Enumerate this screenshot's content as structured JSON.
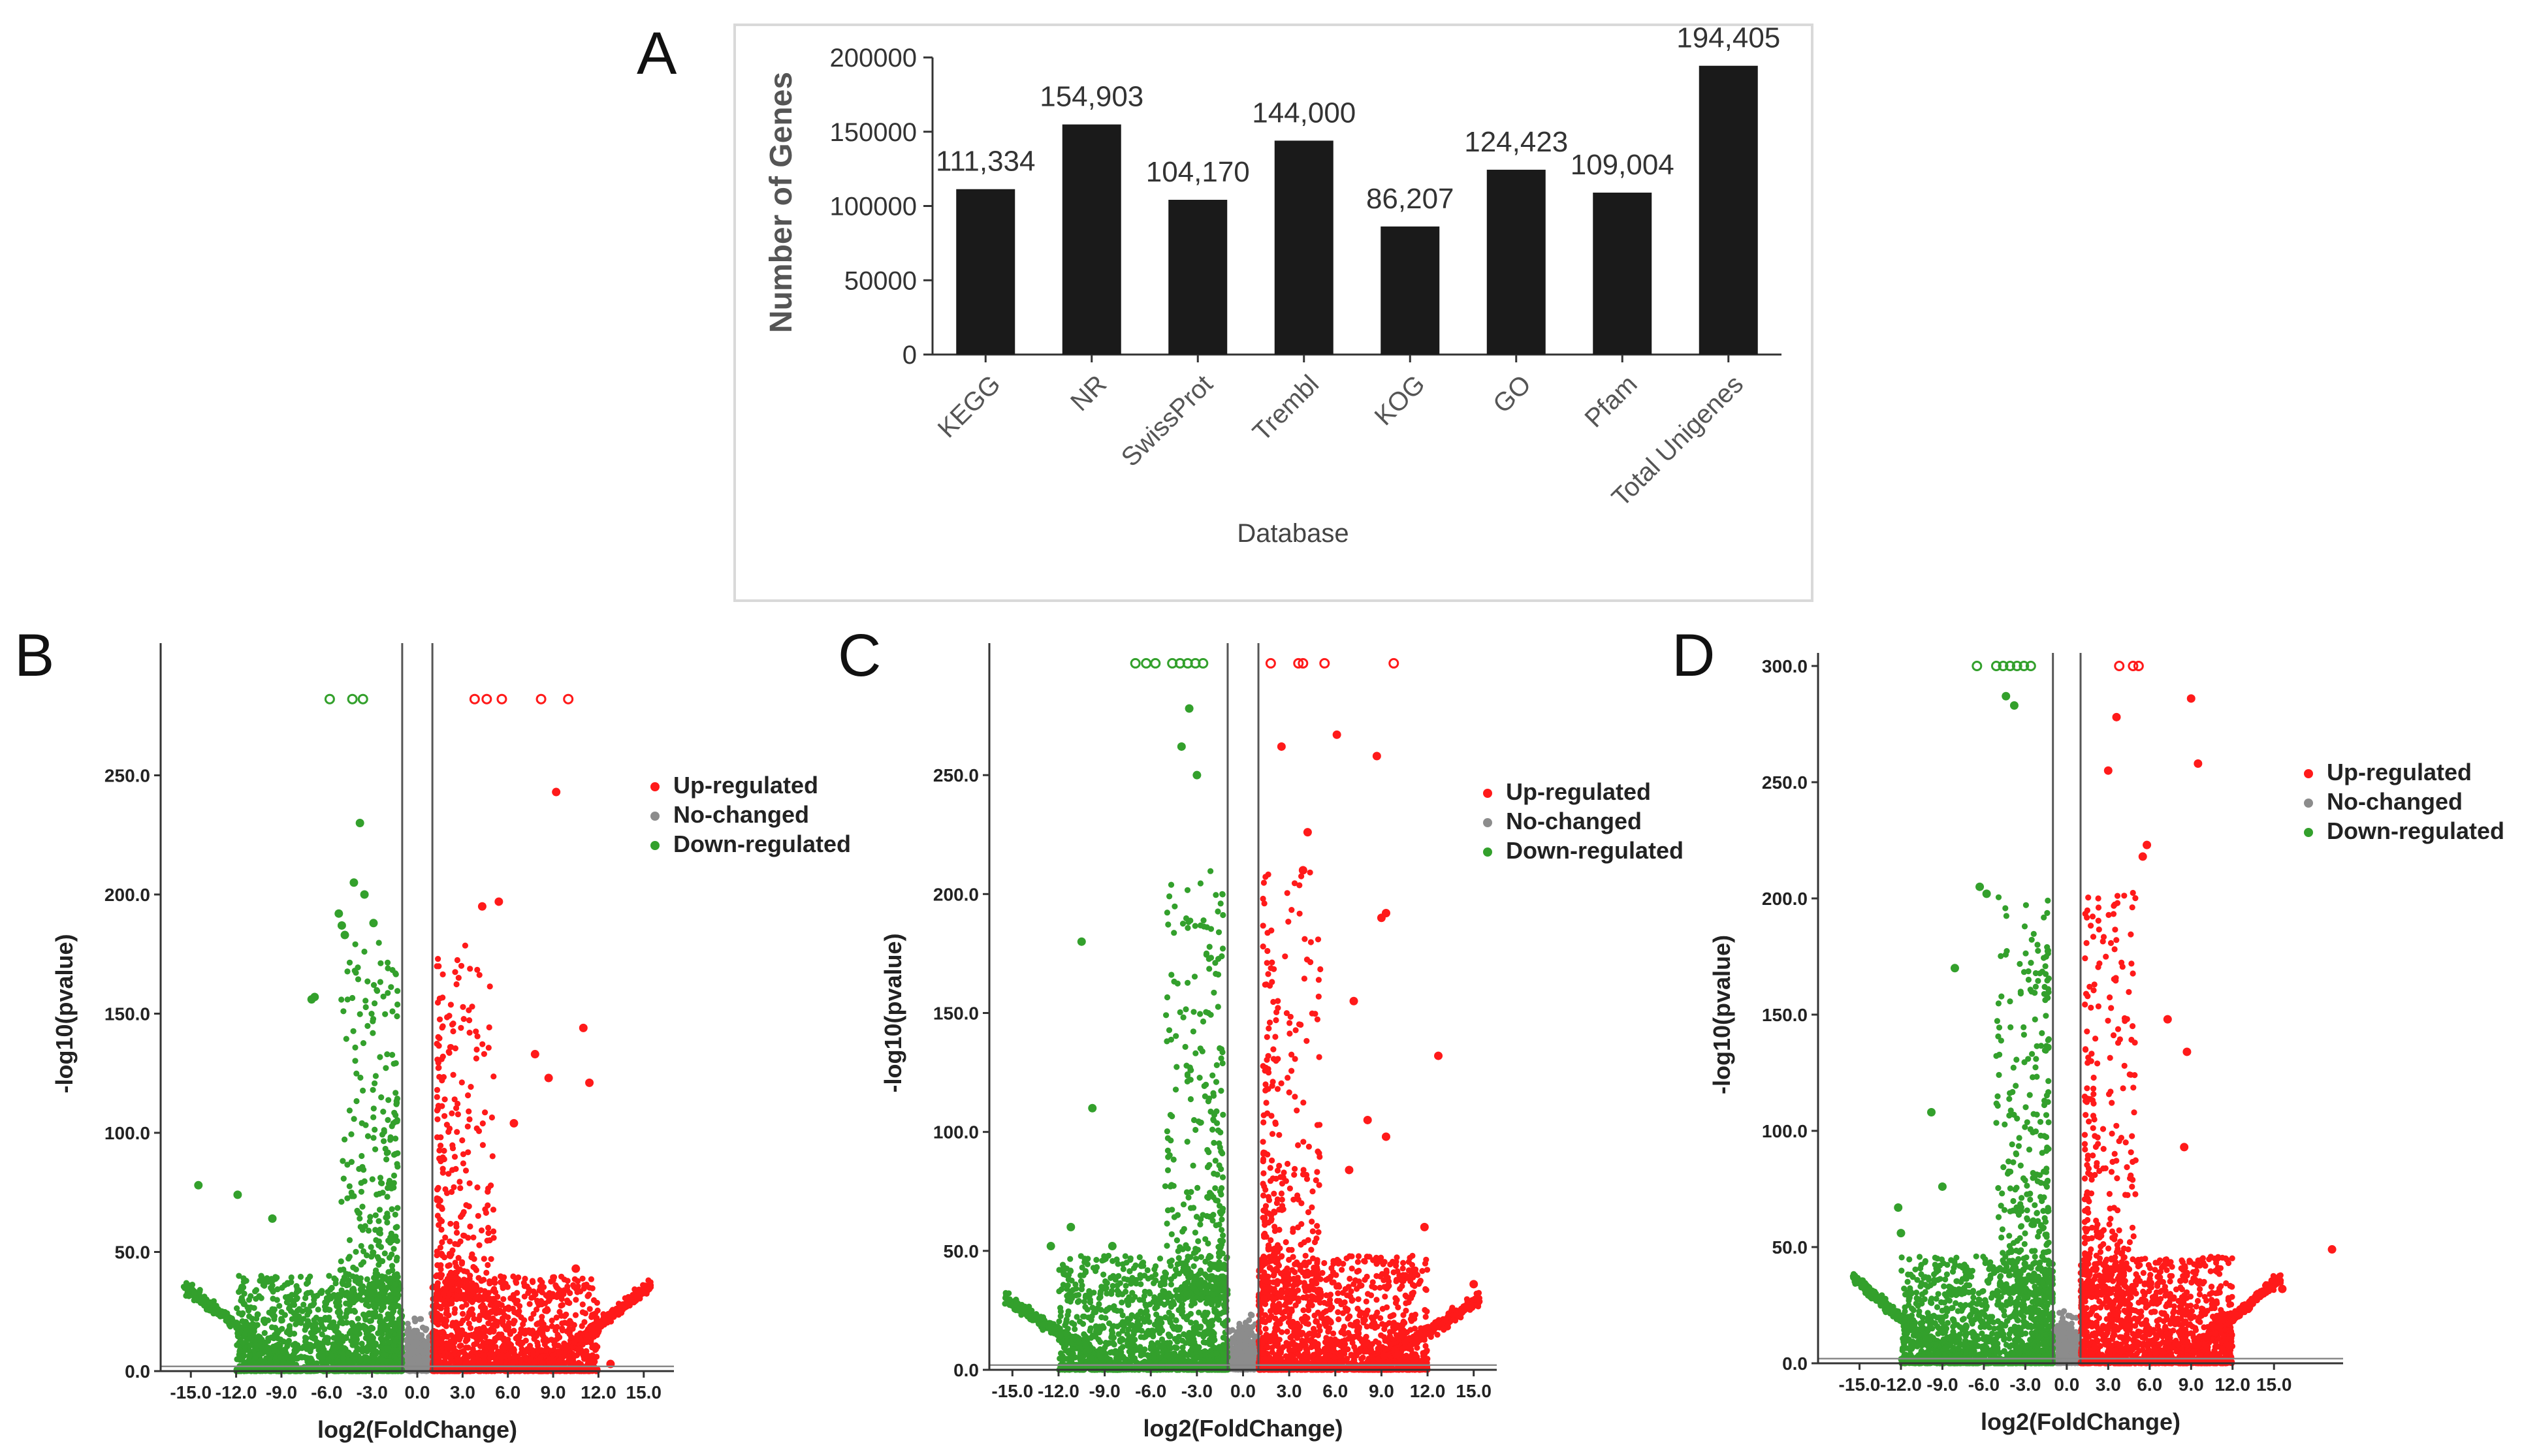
{
  "panel_labels": [
    "A",
    "B",
    "C",
    "D"
  ],
  "colors": {
    "bar": "#1a1a1a",
    "up": "#ff1a1a",
    "none": "#8c8c8c",
    "down": "#33a02c",
    "axis": "#333333",
    "frame": "#d9d9d9"
  },
  "chart_data": [
    {
      "panel": "A",
      "type": "bar",
      "title": "",
      "xlabel": "Database",
      "ylabel": "Number of Genes",
      "categories": [
        "KEGG",
        "NR",
        "SwissProt",
        "Trembl",
        "KOG",
        "GO",
        "Pfam",
        "Total Unigenes"
      ],
      "values": [
        111334,
        154903,
        104170,
        144000,
        86207,
        124423,
        109004,
        194405
      ],
      "data_labels": [
        "111,334",
        "154,903",
        "104,170",
        "144,000",
        "86,207",
        "124,423",
        "109,004",
        "194,405"
      ],
      "ylim": [
        0,
        200000
      ],
      "yticks": [
        0,
        50000,
        100000,
        150000,
        200000
      ],
      "ytick_labels": [
        "0",
        "50000",
        "100000",
        "150000",
        "200000"
      ],
      "grid": false,
      "legend": "none"
    },
    {
      "panel": "B",
      "type": "scatter",
      "subtype": "volcano",
      "xlabel": "log2(FoldChange)",
      "ylabel": "-log10(pvalue)",
      "xlim": [
        -17,
        17
      ],
      "ylim": [
        0,
        300
      ],
      "xticks": [
        -15,
        -12,
        -9,
        -6,
        -3,
        0,
        3,
        6,
        9,
        12,
        15
      ],
      "xtick_labels": [
        "-15.0",
        "-12.0",
        "-9.0",
        "-6.0",
        "-3.0",
        "0.0",
        "3.0",
        "6.0",
        "9.0",
        "12.0",
        "15.0"
      ],
      "yticks": [
        0,
        50,
        100,
        150,
        200,
        250
      ],
      "ytick_labels": [
        "0.0",
        "50.0",
        "100.0",
        "150.0",
        "200.0",
        "250.0"
      ],
      "fc_threshold": 1,
      "pvalue_threshold_line": 2,
      "legend": "top-right",
      "series": [
        {
          "name": "Up-regulated",
          "color_key": "up"
        },
        {
          "name": "No-changed",
          "color_key": "none"
        },
        {
          "name": "Down-regulated",
          "color_key": "down"
        }
      ],
      "capped_points": [
        {
          "x": -5.8,
          "y": 282,
          "group": "down"
        },
        {
          "x": -4.3,
          "y": 282,
          "group": "down"
        },
        {
          "x": -3.6,
          "y": 282,
          "group": "down"
        },
        {
          "x": 3.8,
          "y": 282,
          "group": "up"
        },
        {
          "x": 4.6,
          "y": 282,
          "group": "up"
        },
        {
          "x": 5.6,
          "y": 282,
          "group": "up"
        },
        {
          "x": 8.2,
          "y": 282,
          "group": "up"
        },
        {
          "x": 10.0,
          "y": 282,
          "group": "up"
        }
      ],
      "outliers": [
        {
          "x": 9.2,
          "y": 243,
          "group": "up"
        },
        {
          "x": -3.8,
          "y": 230,
          "group": "down"
        },
        {
          "x": -4.2,
          "y": 205,
          "group": "down"
        },
        {
          "x": -3.5,
          "y": 200,
          "group": "down"
        },
        {
          "x": -5.2,
          "y": 192,
          "group": "down"
        },
        {
          "x": -5.0,
          "y": 187,
          "group": "down"
        },
        {
          "x": -4.8,
          "y": 183,
          "group": "down"
        },
        {
          "x": -2.9,
          "y": 188,
          "group": "down"
        },
        {
          "x": -6.8,
          "y": 157,
          "group": "down"
        },
        {
          "x": -7.0,
          "y": 156,
          "group": "down"
        },
        {
          "x": 5.4,
          "y": 197,
          "group": "up"
        },
        {
          "x": 4.3,
          "y": 195,
          "group": "up"
        },
        {
          "x": 11.0,
          "y": 144,
          "group": "up"
        },
        {
          "x": 11.4,
          "y": 121,
          "group": "up"
        },
        {
          "x": 8.7,
          "y": 123,
          "group": "up"
        },
        {
          "x": 6.4,
          "y": 104,
          "group": "up"
        },
        {
          "x": 7.8,
          "y": 133,
          "group": "up"
        },
        {
          "x": 10.5,
          "y": 43,
          "group": "up"
        },
        {
          "x": 12.0,
          "y": 20,
          "group": "up"
        },
        {
          "x": 12.8,
          "y": 3,
          "group": "up"
        },
        {
          "x": -14.5,
          "y": 78,
          "group": "down"
        },
        {
          "x": -11.9,
          "y": 74,
          "group": "down"
        },
        {
          "x": -9.6,
          "y": 64,
          "group": "down"
        }
      ],
      "params": {
        "spread": 1.0,
        "arm_max": 36,
        "seed": 11
      }
    },
    {
      "panel": "C",
      "type": "scatter",
      "subtype": "volcano",
      "xlabel": "log2(FoldChange)",
      "ylabel": "-log10(pvalue)",
      "xlim": [
        -16.5,
        16.5
      ],
      "ylim": [
        0,
        300
      ],
      "xticks": [
        -15,
        -12,
        -9,
        -6,
        -3,
        0,
        3,
        6,
        9,
        12,
        15
      ],
      "xtick_labels": [
        "-15.0",
        "-12.0",
        "-9.0",
        "-6.0",
        "-3.0",
        "0.0",
        "3.0",
        "6.0",
        "9.0",
        "12.0",
        "15.0"
      ],
      "yticks": [
        0,
        50,
        100,
        150,
        200,
        250
      ],
      "ytick_labels": [
        "0.0",
        "50.0",
        "100.0",
        "150.0",
        "200.0",
        "250.0"
      ],
      "fc_threshold": 1,
      "pvalue_threshold_line": 2,
      "legend": "top-right",
      "series": [
        {
          "name": "Up-regulated",
          "color_key": "up"
        },
        {
          "name": "No-changed",
          "color_key": "none"
        },
        {
          "name": "Down-regulated",
          "color_key": "down"
        }
      ],
      "capped_points": [
        {
          "x": -7.0,
          "y": 297,
          "group": "down"
        },
        {
          "x": -6.3,
          "y": 297,
          "group": "down"
        },
        {
          "x": -5.7,
          "y": 297,
          "group": "down"
        },
        {
          "x": -4.6,
          "y": 297,
          "group": "down"
        },
        {
          "x": -4.1,
          "y": 297,
          "group": "down"
        },
        {
          "x": -3.6,
          "y": 297,
          "group": "down"
        },
        {
          "x": -3.1,
          "y": 297,
          "group": "down"
        },
        {
          "x": -2.6,
          "y": 297,
          "group": "down"
        },
        {
          "x": 1.8,
          "y": 297,
          "group": "up"
        },
        {
          "x": 3.6,
          "y": 297,
          "group": "up"
        },
        {
          "x": 3.9,
          "y": 297,
          "group": "up"
        },
        {
          "x": 5.3,
          "y": 297,
          "group": "up"
        },
        {
          "x": 9.8,
          "y": 297,
          "group": "up"
        }
      ],
      "outliers": [
        {
          "x": -10.5,
          "y": 180,
          "group": "down"
        },
        {
          "x": -3.5,
          "y": 278,
          "group": "down"
        },
        {
          "x": -4.0,
          "y": 262,
          "group": "down"
        },
        {
          "x": -3.0,
          "y": 250,
          "group": "down"
        },
        {
          "x": 6.1,
          "y": 267,
          "group": "up"
        },
        {
          "x": 2.5,
          "y": 262,
          "group": "up"
        },
        {
          "x": 8.7,
          "y": 258,
          "group": "up"
        },
        {
          "x": 4.2,
          "y": 226,
          "group": "up"
        },
        {
          "x": 3.9,
          "y": 210,
          "group": "up"
        },
        {
          "x": 9.3,
          "y": 192,
          "group": "up"
        },
        {
          "x": 9.0,
          "y": 190,
          "group": "up"
        },
        {
          "x": 12.7,
          "y": 132,
          "group": "up"
        },
        {
          "x": 7.2,
          "y": 155,
          "group": "up"
        },
        {
          "x": 8.1,
          "y": 105,
          "group": "up"
        },
        {
          "x": 9.3,
          "y": 98,
          "group": "up"
        },
        {
          "x": 6.9,
          "y": 84,
          "group": "up"
        },
        {
          "x": 11.8,
          "y": 60,
          "group": "up"
        },
        {
          "x": 15.0,
          "y": 36,
          "group": "up"
        },
        {
          "x": -9.8,
          "y": 110,
          "group": "down"
        },
        {
          "x": -11.2,
          "y": 60,
          "group": "down"
        },
        {
          "x": -12.5,
          "y": 52,
          "group": "down"
        },
        {
          "x": -8.5,
          "y": 52,
          "group": "down"
        }
      ],
      "params": {
        "spread": 1.2,
        "arm_max": 30,
        "seed": 23
      }
    },
    {
      "panel": "D",
      "type": "scatter",
      "subtype": "volcano",
      "xlabel": "log2(FoldChange)",
      "ylabel": "-log10(pvalue)",
      "xlim": [
        -18,
        20
      ],
      "ylim": [
        0,
        300
      ],
      "xticks": [
        -15,
        -12,
        -9,
        -6,
        -3,
        0,
        3,
        6,
        9,
        12,
        15
      ],
      "xtick_labels": [
        "-15.0",
        "-12.0",
        "-9.0",
        "-6.0",
        "-3.0",
        "0.0",
        "3.0",
        "6.0",
        "9.0",
        "12.0",
        "15.0"
      ],
      "yticks": [
        0,
        50,
        100,
        150,
        200,
        250,
        300
      ],
      "ytick_labels": [
        "0.0",
        "50.0",
        "100.0",
        "150.0",
        "200.0",
        "250.0",
        "300.0"
      ],
      "fc_threshold": 1,
      "pvalue_threshold_line": 2,
      "legend": "top-right",
      "series": [
        {
          "name": "Up-regulated",
          "color_key": "up"
        },
        {
          "name": "No-changed",
          "color_key": "none"
        },
        {
          "name": "Down-regulated",
          "color_key": "down"
        }
      ],
      "capped_points": [
        {
          "x": -6.5,
          "y": 300,
          "group": "down"
        },
        {
          "x": -5.1,
          "y": 300,
          "group": "down"
        },
        {
          "x": -4.6,
          "y": 300,
          "group": "down"
        },
        {
          "x": -4.1,
          "y": 300,
          "group": "down"
        },
        {
          "x": -3.6,
          "y": 300,
          "group": "down"
        },
        {
          "x": -3.1,
          "y": 300,
          "group": "down"
        },
        {
          "x": -2.6,
          "y": 300,
          "group": "down"
        },
        {
          "x": 3.8,
          "y": 300,
          "group": "up"
        },
        {
          "x": 4.8,
          "y": 300,
          "group": "up"
        },
        {
          "x": 5.2,
          "y": 300,
          "group": "up"
        }
      ],
      "outliers": [
        {
          "x": 9.0,
          "y": 286,
          "group": "up"
        },
        {
          "x": 3.6,
          "y": 278,
          "group": "up"
        },
        {
          "x": 9.5,
          "y": 258,
          "group": "up"
        },
        {
          "x": 3.0,
          "y": 255,
          "group": "up"
        },
        {
          "x": 5.8,
          "y": 223,
          "group": "up"
        },
        {
          "x": 5.5,
          "y": 218,
          "group": "up"
        },
        {
          "x": 8.7,
          "y": 134,
          "group": "up"
        },
        {
          "x": 7.3,
          "y": 148,
          "group": "up"
        },
        {
          "x": 8.5,
          "y": 93,
          "group": "up"
        },
        {
          "x": 19.2,
          "y": 49,
          "group": "up"
        },
        {
          "x": 15.6,
          "y": 32,
          "group": "up"
        },
        {
          "x": -3.8,
          "y": 283,
          "group": "down"
        },
        {
          "x": -4.4,
          "y": 287,
          "group": "down"
        },
        {
          "x": -6.3,
          "y": 205,
          "group": "down"
        },
        {
          "x": -5.8,
          "y": 202,
          "group": "down"
        },
        {
          "x": -8.1,
          "y": 170,
          "group": "down"
        },
        {
          "x": -9.0,
          "y": 76,
          "group": "down"
        },
        {
          "x": -9.8,
          "y": 108,
          "group": "down"
        },
        {
          "x": -12.2,
          "y": 67,
          "group": "down"
        },
        {
          "x": -12.0,
          "y": 56,
          "group": "down"
        }
      ],
      "params": {
        "spread": 1.15,
        "arm_max": 37,
        "seed": 37
      }
    }
  ]
}
